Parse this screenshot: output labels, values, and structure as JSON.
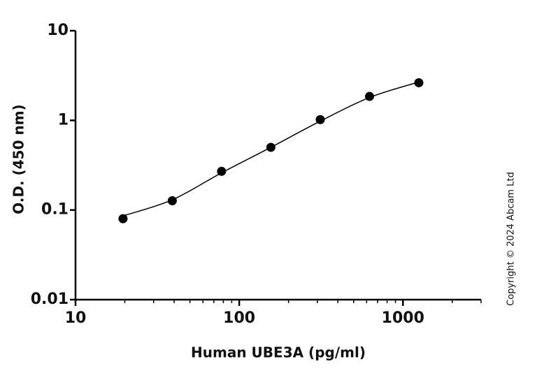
{
  "chart_data": {
    "type": "scatter",
    "x_label": "Human UBE3A (pg/ml)",
    "y_label": "O.D. (450 nm)",
    "x": [
      19.5,
      39,
      78,
      156,
      312.5,
      625,
      1250
    ],
    "values": [
      0.08,
      0.127,
      0.27,
      0.5,
      1.02,
      1.85,
      2.63
    ],
    "fit_x": [
      19.5,
      39,
      78,
      156,
      312.5,
      625,
      1250
    ],
    "fit_values": [
      0.086,
      0.13,
      0.26,
      0.5,
      0.98,
      1.8,
      2.68
    ],
    "color": "#000000",
    "x_log": true,
    "y_log": true,
    "xlim": [
      10,
      3000
    ],
    "ylim": [
      0.01,
      10
    ],
    "xticks": [
      10,
      100,
      1000
    ],
    "yticks": [
      0.01,
      0.1,
      1,
      10
    ],
    "xminorticks": [
      20,
      30,
      40,
      50,
      60,
      70,
      80,
      90,
      200,
      300,
      400,
      500,
      600,
      700,
      800,
      900,
      2000,
      3000
    ],
    "copyright": "Copyright © 2024 Abcam Ltd"
  }
}
